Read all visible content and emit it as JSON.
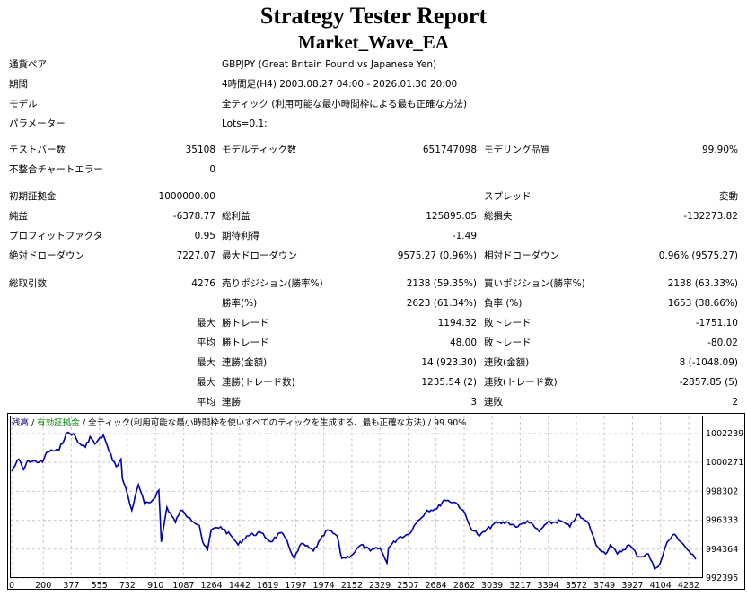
{
  "header": {
    "title": "Strategy Tester Report",
    "ea_name": "Market_Wave_EA"
  },
  "info": [
    {
      "label": "通貨ペア",
      "value": "GBPJPY (Great Britain Pound vs Japanese Yen)"
    },
    {
      "label": "期間",
      "value": "4時間足(H4) 2003.08.27 04:00 - 2026.01.30 20:00"
    },
    {
      "label": "モデル",
      "value": "全ティック (利用可能な最小時間枠による最も正確な方法)"
    },
    {
      "label": "パラメーター",
      "value": "Lots=0.1;"
    }
  ],
  "stats": [
    {
      "cls": "gap",
      "cells": [
        "テストバー数",
        "35108",
        "モデルティック数",
        "651747098",
        "モデリング品質",
        "99.90%"
      ]
    },
    {
      "cls": "",
      "cells": [
        "不整合チャートエラー",
        "0",
        "",
        "",
        "",
        ""
      ]
    },
    {
      "cls": "gap2",
      "cells": [
        "初期証拠金",
        "1000000.00",
        "",
        "",
        "スプレッド",
        "変動"
      ]
    },
    {
      "cls": "",
      "cells": [
        "純益",
        "-6378.77",
        "総利益",
        "125895.05",
        "総損失",
        "-132273.82"
      ]
    },
    {
      "cls": "",
      "cells": [
        "プロフィットファクタ",
        "0.95",
        "期待利得",
        "-1.49",
        "",
        ""
      ]
    },
    {
      "cls": "",
      "cells": [
        "絶対ドローダウン",
        "7227.07",
        "最大ドローダウン",
        "9575.27 (0.96%)",
        "相対ドローダウン",
        "0.96% (9575.27)"
      ]
    },
    {
      "cls": "gap3",
      "cells": [
        "総取引数",
        "4276",
        "売りポジション(勝率%)",
        "2138 (59.35%)",
        "買いポジション(勝率%)",
        "2138 (63.33%)"
      ]
    },
    {
      "cls": "",
      "cells": [
        "",
        "",
        "勝率(%)",
        "2623 (61.34%)",
        "負率 (%)",
        "1653 (38.66%)"
      ]
    },
    {
      "cls": "",
      "cells": [
        "",
        "最大",
        "勝トレード",
        "1194.32",
        "敗トレード",
        "-1751.10"
      ]
    },
    {
      "cls": "",
      "cells": [
        "",
        "平均",
        "勝トレード",
        "48.00",
        "敗トレード",
        "-80.02"
      ]
    },
    {
      "cls": "",
      "cells": [
        "",
        "最大",
        "連勝(金額)",
        "14 (923.30)",
        "連敗(金額)",
        "8 (-1048.09)"
      ]
    },
    {
      "cls": "",
      "cells": [
        "",
        "最大",
        "連勝(トレード数)",
        "1235.54 (2)",
        "連敗(トレード数)",
        "-2857.85 (5)"
      ]
    },
    {
      "cls": "",
      "cells": [
        "",
        "平均",
        "連勝",
        "3",
        "連敗",
        "2"
      ]
    }
  ],
  "chart_data": {
    "type": "line",
    "legend": {
      "balance": "残高",
      "equity": "有効証拠金",
      "model": "全ティック(利用可能な最小時間枠を使いすべてのティックを生成する、最も正確な方法)",
      "quality": "99.90%",
      "sep": "/"
    },
    "colors": {
      "line": "#0000a8",
      "balance": "#000080",
      "equity": "#008000",
      "grid": "#c8c8c8"
    },
    "x_ticks": [
      0,
      200,
      377,
      555,
      732,
      910,
      1087,
      1264,
      1442,
      1619,
      1797,
      1974,
      2152,
      2329,
      2507,
      2684,
      2862,
      3039,
      3217,
      3394,
      3572,
      3749,
      3927,
      4104,
      4282
    ],
    "y_ticks": [
      1002239,
      1000271,
      998302,
      996333,
      994364,
      992395
    ],
    "ylim": [
      992395,
      1003600
    ],
    "xlim": [
      0,
      4350
    ],
    "series": [
      {
        "name": "残高",
        "points": [
          [
            0,
            999676
          ],
          [
            45,
            1000496
          ],
          [
            75,
            999779
          ],
          [
            105,
            1000394
          ],
          [
            195,
            1000291
          ],
          [
            225,
            1001009
          ],
          [
            300,
            1001111
          ],
          [
            345,
            1002239
          ],
          [
            390,
            1002239
          ],
          [
            420,
            1001624
          ],
          [
            466,
            1001316
          ],
          [
            496,
            1002034
          ],
          [
            526,
            1001521
          ],
          [
            580,
            1002136
          ],
          [
            616,
            1001009
          ],
          [
            661,
            999984
          ],
          [
            691,
            1000496
          ],
          [
            700,
            999164
          ],
          [
            721,
            998549
          ],
          [
            760,
            997011
          ],
          [
            802,
            998754
          ],
          [
            841,
            997421
          ],
          [
            886,
            997626
          ],
          [
            931,
            998385
          ],
          [
            946,
            994859
          ],
          [
            982,
            997216
          ],
          [
            1036,
            996191
          ],
          [
            1067,
            997011
          ],
          [
            1127,
            996499
          ],
          [
            1187,
            995986
          ],
          [
            1208,
            994859
          ],
          [
            1238,
            994244
          ],
          [
            1262,
            995679
          ],
          [
            1322,
            995884
          ],
          [
            1397,
            995166
          ],
          [
            1433,
            994654
          ],
          [
            1487,
            995269
          ],
          [
            1578,
            995474
          ],
          [
            1638,
            994859
          ],
          [
            1698,
            995474
          ],
          [
            1728,
            995166
          ],
          [
            1788,
            993732
          ],
          [
            1833,
            994756
          ],
          [
            1908,
            994244
          ],
          [
            1998,
            995679
          ],
          [
            2058,
            995269
          ],
          [
            2088,
            993732
          ],
          [
            2148,
            993937
          ],
          [
            2209,
            994654
          ],
          [
            2269,
            994244
          ],
          [
            2329,
            994449
          ],
          [
            2374,
            993424
          ],
          [
            2383,
            994449
          ],
          [
            2449,
            995166
          ],
          [
            2509,
            995371
          ],
          [
            2569,
            996294
          ],
          [
            2629,
            997011
          ],
          [
            2690,
            997114
          ],
          [
            2735,
            997729
          ],
          [
            2810,
            997524
          ],
          [
            2855,
            997011
          ],
          [
            2900,
            995884
          ],
          [
            2960,
            995269
          ],
          [
            3051,
            996089
          ],
          [
            3141,
            996191
          ],
          [
            3201,
            995884
          ],
          [
            3261,
            996294
          ],
          [
            3336,
            995576
          ],
          [
            3381,
            996089
          ],
          [
            3471,
            996294
          ],
          [
            3531,
            995884
          ],
          [
            3576,
            996704
          ],
          [
            3651,
            996089
          ],
          [
            3696,
            994654
          ],
          [
            3756,
            994039
          ],
          [
            3786,
            994654
          ],
          [
            3831,
            994039
          ],
          [
            3906,
            994654
          ],
          [
            3967,
            993834
          ],
          [
            4027,
            994039
          ],
          [
            4066,
            993014
          ],
          [
            4102,
            993424
          ],
          [
            4147,
            994859
          ],
          [
            4192,
            995371
          ],
          [
            4252,
            994654
          ],
          [
            4297,
            994039
          ],
          [
            4327,
            993670
          ]
        ]
      }
    ]
  }
}
